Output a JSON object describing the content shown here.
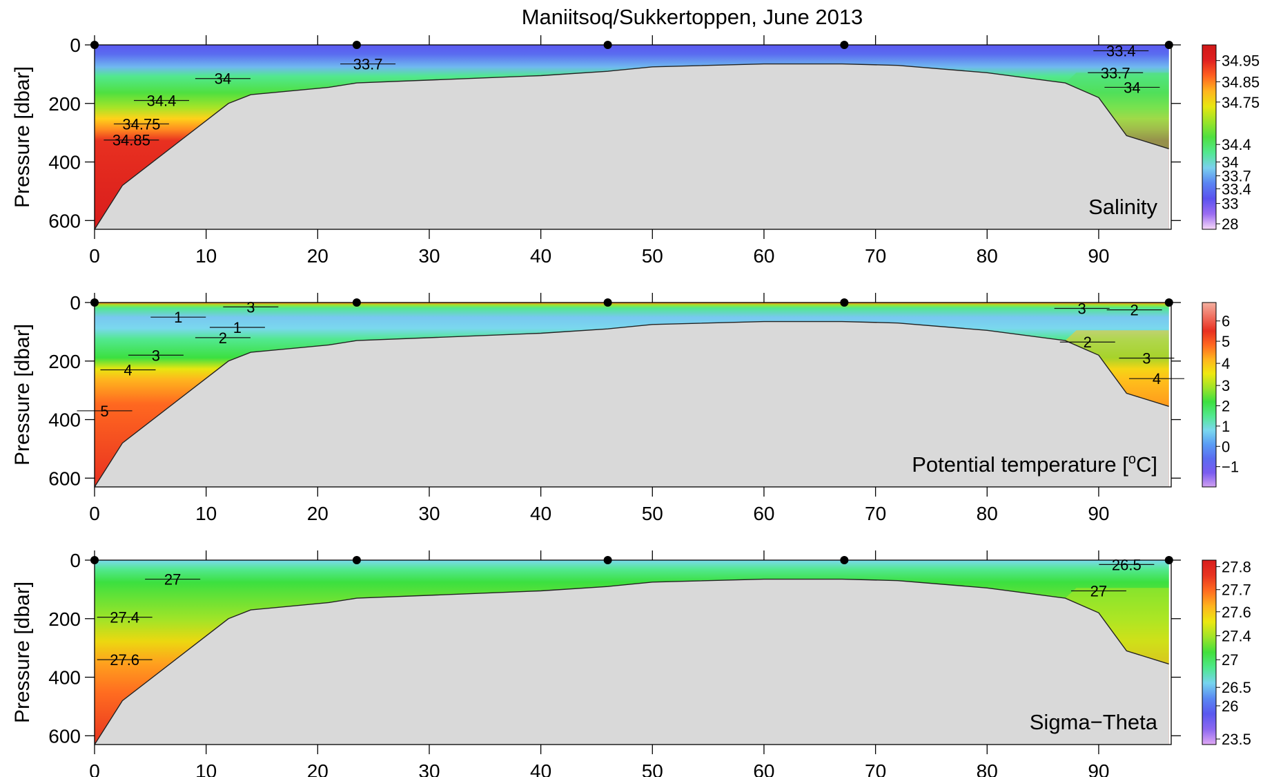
{
  "figure": {
    "title": "Maniitsoq/Sukkertoppen, June 2013"
  },
  "chart_data": [
    {
      "type": "heatmap",
      "panel_label": "Salinity",
      "ylabel": "Pressure [dbar]",
      "xlim": [
        0,
        96.5
      ],
      "ylim": [
        630,
        0
      ],
      "y_reversed": true,
      "x_ticks": [
        "0",
        "10",
        "20",
        "30",
        "40",
        "50",
        "60",
        "70",
        "80",
        "90"
      ],
      "y_ticks": [
        "0",
        "200",
        "400",
        "600"
      ],
      "station_x": [
        0,
        23.5,
        46,
        67.2,
        96.3
      ],
      "colorbar_ticks": [
        "34.95",
        "34.85",
        "34.75",
        "34.4",
        "34",
        "33.7",
        "33.4",
        "33",
        "28"
      ],
      "colorbar_colors": [
        "#f7d8f7",
        "#9b6cf2",
        "#5a52ef",
        "#5a84f2",
        "#7ad0ee",
        "#52e88f",
        "#4fe040",
        "#9be428",
        "#e8e610",
        "#ffb41e",
        "#ff6020",
        "#e02020",
        "#d01818"
      ],
      "contours": [
        {
          "label": "33.4",
          "x": 92,
          "y": 20
        },
        {
          "label": "33.7",
          "x": 24.5,
          "y": 65
        },
        {
          "label": "33.7",
          "x": 91.5,
          "y": 95
        },
        {
          "label": "34",
          "x": 11.5,
          "y": 115
        },
        {
          "label": "34",
          "x": 93,
          "y": 145
        },
        {
          "label": "34.4",
          "x": 6,
          "y": 190
        },
        {
          "label": "34.75",
          "x": 4.2,
          "y": 270
        },
        {
          "label": "34.85",
          "x": 3.3,
          "y": 325
        }
      ]
    },
    {
      "type": "heatmap",
      "panel_label": "Potential temperature [",
      "panel_label_sup": "o",
      "panel_label_end": "C]",
      "ylabel": "Pressure [dbar]",
      "xlim": [
        0,
        96.5
      ],
      "ylim": [
        630,
        0
      ],
      "y_reversed": true,
      "x_ticks": [
        "0",
        "10",
        "20",
        "30",
        "40",
        "50",
        "60",
        "70",
        "80",
        "90"
      ],
      "y_ticks": [
        "0",
        "200",
        "400",
        "600"
      ],
      "station_x": [
        0,
        23.5,
        46,
        67.2,
        96.3
      ],
      "colorbar_ticks": [
        "6",
        "5",
        "4",
        "3",
        "2",
        "1",
        "0",
        "−1"
      ],
      "colorbar_colors": [
        "#d0a0f0",
        "#7a5cf0",
        "#5a6cf0",
        "#5a9cf4",
        "#7ad8ee",
        "#52e88f",
        "#3ce040",
        "#a0e428",
        "#f0e810",
        "#ffb41e",
        "#ff6820",
        "#e83020",
        "#f07060",
        "#f4b0a0"
      ],
      "contours": [
        {
          "label": "3",
          "x": 14,
          "y": 15
        },
        {
          "label": "1",
          "x": 7.5,
          "y": 50
        },
        {
          "label": "1",
          "x": 12.8,
          "y": 85
        },
        {
          "label": "2",
          "x": 11.5,
          "y": 120
        },
        {
          "label": "3",
          "x": 5.5,
          "y": 180
        },
        {
          "label": "4",
          "x": 3,
          "y": 230
        },
        {
          "label": "5",
          "x": 0.9,
          "y": 370
        },
        {
          "label": "3",
          "x": 88.5,
          "y": 20
        },
        {
          "label": "2",
          "x": 93.2,
          "y": 25
        },
        {
          "label": "2",
          "x": 89,
          "y": 135
        },
        {
          "label": "3",
          "x": 94.3,
          "y": 190
        },
        {
          "label": "4",
          "x": 95.2,
          "y": 260
        }
      ]
    },
    {
      "type": "heatmap",
      "panel_label": "Sigma−Theta",
      "ylabel": "Pressure [dbar]",
      "xlim": [
        0,
        96.5
      ],
      "ylim": [
        630,
        0
      ],
      "y_reversed": true,
      "x_ticks": [
        "0",
        "10",
        "20",
        "30",
        "40",
        "50",
        "60",
        "70",
        "80",
        "90"
      ],
      "y_ticks": [
        "0",
        "200",
        "400",
        "600"
      ],
      "station_x": [
        0,
        23.5,
        46,
        67.2,
        96.3
      ],
      "colorbar_ticks": [
        "27.8",
        "27.7",
        "27.6",
        "27.4",
        "27",
        "26.5",
        "26",
        "23.5"
      ],
      "colorbar_colors": [
        "#e0a8f4",
        "#8c68f0",
        "#5a58ef",
        "#5a88f2",
        "#76d4ee",
        "#4ee88c",
        "#42e03c",
        "#a0e428",
        "#ece810",
        "#ffb41e",
        "#ff6c20",
        "#e83420",
        "#d81c1c"
      ],
      "contours": [
        {
          "label": "26.5",
          "x": 92.5,
          "y": 15
        },
        {
          "label": "27",
          "x": 7,
          "y": 65
        },
        {
          "label": "27",
          "x": 90,
          "y": 105
        },
        {
          "label": "27.4",
          "x": 2.7,
          "y": 195
        },
        {
          "label": "27.6",
          "x": 2.7,
          "y": 340
        }
      ]
    }
  ]
}
